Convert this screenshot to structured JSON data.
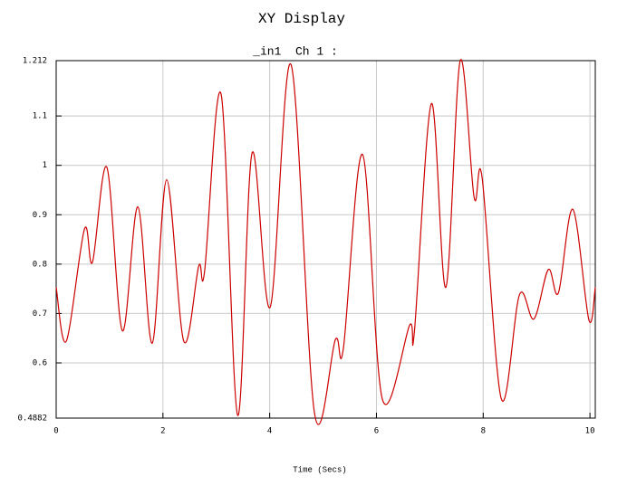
{
  "chart_data": {
    "type": "line",
    "title": "XY Display",
    "subtitle": "_in1  Ch 1 :",
    "x_label": "Time (Secs)",
    "x": [
      0,
      0.19,
      0.53,
      0.68,
      0.95,
      1.24,
      1.53,
      1.8,
      2.07,
      2.39,
      2.67,
      2.78,
      3.09,
      3.4,
      3.67,
      4.01,
      4.4,
      4.84,
      5.23,
      5.38,
      5.74,
      6.11,
      6.62,
      6.71,
      7.03,
      7.3,
      7.57,
      7.83,
      7.98,
      8.34,
      8.68,
      8.95,
      9.22,
      9.41,
      9.68,
      9.98,
      10.1
    ],
    "series": [
      {
        "color": "#cc0000",
        "values": [
          0.753,
          0.644,
          0.871,
          0.804,
          0.996,
          0.665,
          0.916,
          0.64,
          0.971,
          0.644,
          0.796,
          0.785,
          1.144,
          0.494,
          1.025,
          0.713,
          1.204,
          0.498,
          0.647,
          0.629,
          1.022,
          0.527,
          0.676,
          0.662,
          1.125,
          0.753,
          1.212,
          0.935,
          0.975,
          0.527,
          0.738,
          0.689,
          0.789,
          0.742,
          0.911,
          0.687,
          0.753
        ]
      }
    ],
    "xlim": [
      0,
      10.1
    ],
    "xticks": [
      0,
      2,
      4,
      6,
      8,
      10
    ],
    "ylim": [
      0.4882,
      1.212
    ],
    "yticks": [
      0.4882,
      0.6,
      0.7,
      0.8,
      0.9,
      1,
      1.1,
      1.212
    ],
    "grid": true
  }
}
